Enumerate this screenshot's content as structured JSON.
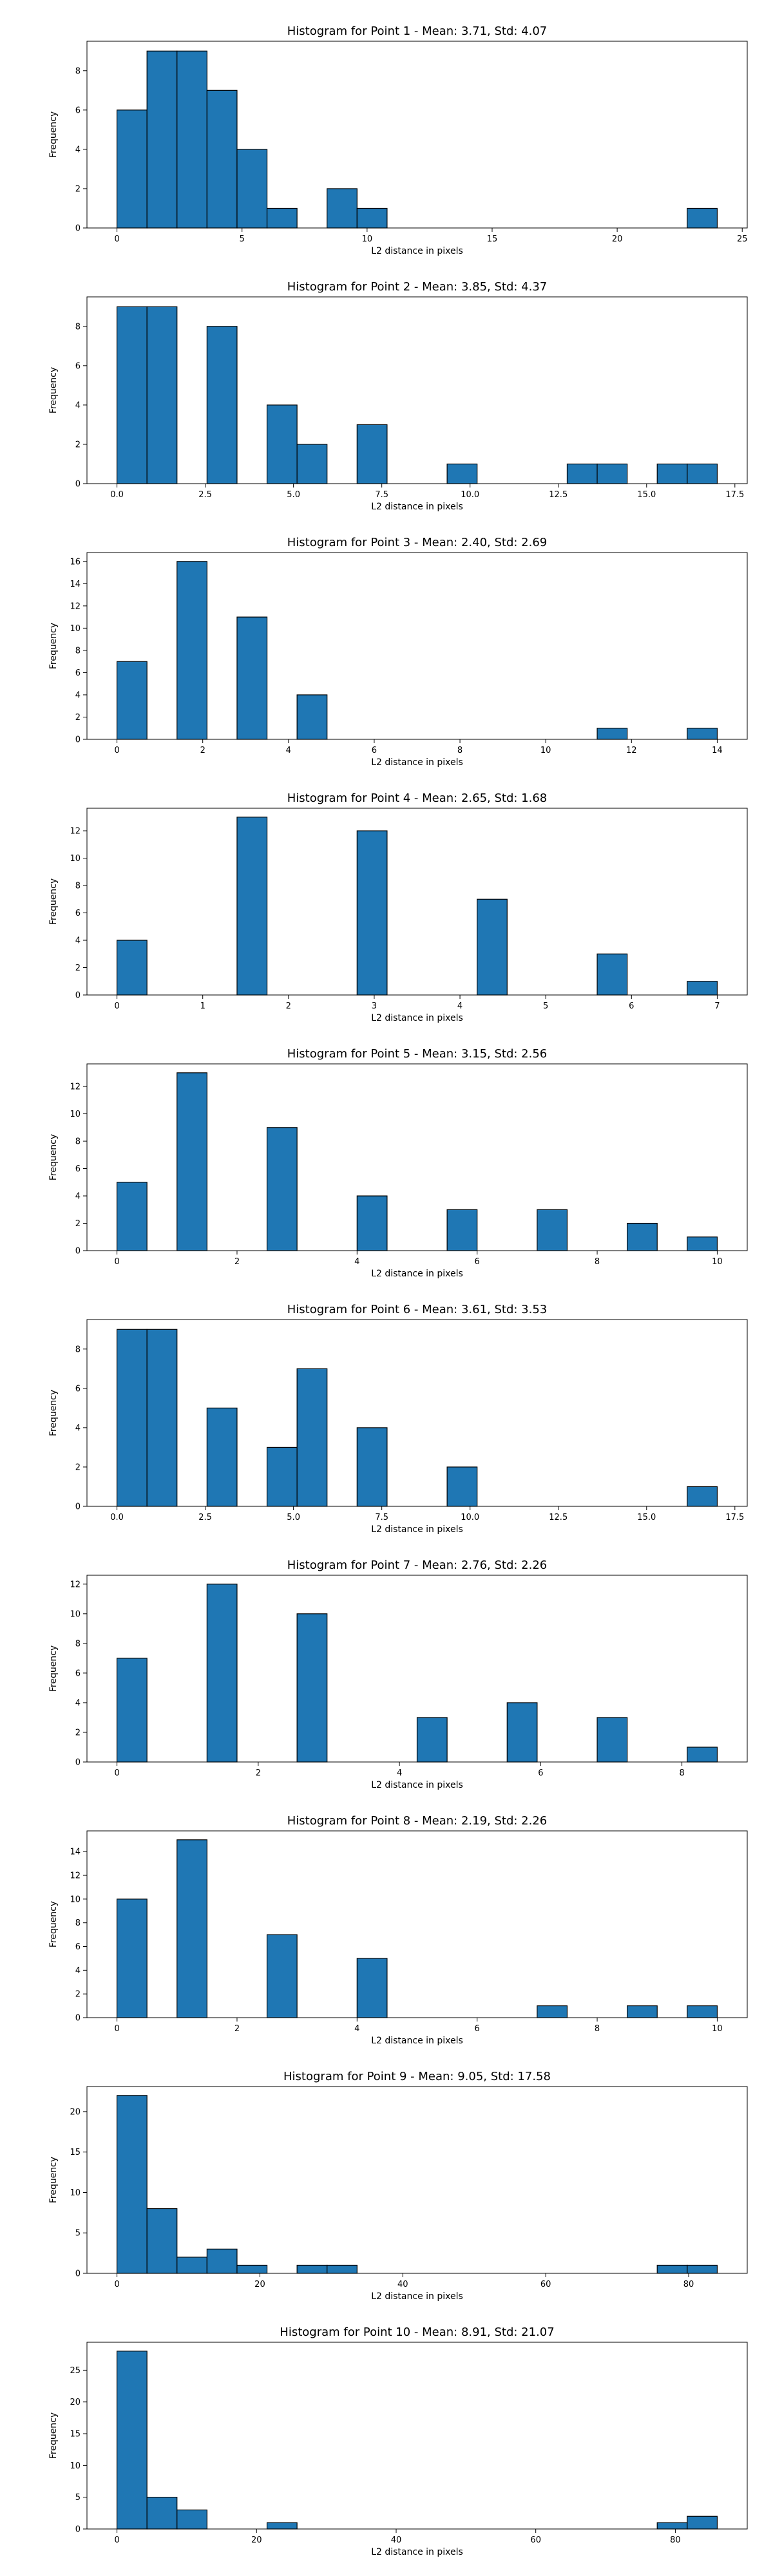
{
  "chart_data": [
    {
      "type": "bar",
      "title": "Histogram for Point 1 - Mean: 3.71, Std: 4.07",
      "xlabel": "L2 distance in pixels",
      "ylabel": "Frequency",
      "xlim": [
        -1.2,
        25.2
      ],
      "ylim": [
        0,
        9.5
      ],
      "xticks": [
        0,
        5,
        10,
        15,
        20,
        25
      ],
      "xtick_labels": [
        "0",
        "5",
        "10",
        "15",
        "20",
        "25"
      ],
      "yticks": [
        0,
        2,
        4,
        6,
        8
      ],
      "ytick_labels": [
        "0",
        "2",
        "4",
        "6",
        "8"
      ],
      "bins": [
        {
          "x0": 0.0,
          "x1": 1.2,
          "count": 6
        },
        {
          "x0": 1.2,
          "x1": 2.4,
          "count": 9
        },
        {
          "x0": 2.4,
          "x1": 3.6,
          "count": 9
        },
        {
          "x0": 3.6,
          "x1": 4.8,
          "count": 7
        },
        {
          "x0": 4.8,
          "x1": 6.0,
          "count": 4
        },
        {
          "x0": 6.0,
          "x1": 7.2,
          "count": 1
        },
        {
          "x0": 8.4,
          "x1": 9.6,
          "count": 2
        },
        {
          "x0": 9.6,
          "x1": 10.8,
          "count": 1
        },
        {
          "x0": 22.8,
          "x1": 24.0,
          "count": 1
        }
      ]
    },
    {
      "type": "bar",
      "title": "Histogram for Point 2 - Mean: 3.85, Std: 4.37",
      "xlabel": "L2 distance in pixels",
      "ylabel": "Frequency",
      "xlim": [
        -0.85,
        17.85
      ],
      "ylim": [
        0,
        9.5
      ],
      "xticks": [
        0,
        2.5,
        5,
        7.5,
        10,
        12.5,
        15,
        17.5
      ],
      "xtick_labels": [
        "0.0",
        "2.5",
        "5.0",
        "7.5",
        "10.0",
        "12.5",
        "15.0",
        "17.5"
      ],
      "yticks": [
        0,
        2,
        4,
        6,
        8
      ],
      "ytick_labels": [
        "0",
        "2",
        "4",
        "6",
        "8"
      ],
      "bins": [
        {
          "x0": 0.0,
          "x1": 0.85,
          "count": 9
        },
        {
          "x0": 0.85,
          "x1": 1.7,
          "count": 9
        },
        {
          "x0": 2.55,
          "x1": 3.4,
          "count": 8
        },
        {
          "x0": 4.25,
          "x1": 5.1,
          "count": 4
        },
        {
          "x0": 5.1,
          "x1": 5.95,
          "count": 2
        },
        {
          "x0": 6.8,
          "x1": 7.65,
          "count": 3
        },
        {
          "x0": 9.35,
          "x1": 10.2,
          "count": 1
        },
        {
          "x0": 12.75,
          "x1": 13.6,
          "count": 1
        },
        {
          "x0": 13.6,
          "x1": 14.45,
          "count": 1
        },
        {
          "x0": 15.3,
          "x1": 16.15,
          "count": 1
        },
        {
          "x0": 16.15,
          "x1": 17.0,
          "count": 1
        }
      ]
    },
    {
      "type": "bar",
      "title": "Histogram for Point 3 - Mean: 2.40, Std: 2.69",
      "xlabel": "L2 distance in pixels",
      "ylabel": "Frequency",
      "xlim": [
        -0.7,
        14.7
      ],
      "ylim": [
        0,
        16.8
      ],
      "xticks": [
        0,
        2,
        4,
        6,
        8,
        10,
        12,
        14
      ],
      "xtick_labels": [
        "0",
        "2",
        "4",
        "6",
        "8",
        "10",
        "12",
        "14"
      ],
      "yticks": [
        0,
        2,
        4,
        6,
        8,
        10,
        12,
        14,
        16
      ],
      "ytick_labels": [
        "0",
        "2",
        "4",
        "6",
        "8",
        "10",
        "12",
        "14",
        "16"
      ],
      "bins": [
        {
          "x0": 0.0,
          "x1": 0.7,
          "count": 7
        },
        {
          "x0": 1.4,
          "x1": 2.1,
          "count": 16
        },
        {
          "x0": 2.8,
          "x1": 3.5,
          "count": 11
        },
        {
          "x0": 4.2,
          "x1": 4.9,
          "count": 4
        },
        {
          "x0": 11.2,
          "x1": 11.9,
          "count": 1
        },
        {
          "x0": 13.3,
          "x1": 14.0,
          "count": 1
        }
      ]
    },
    {
      "type": "bar",
      "title": "Histogram for Point 4 - Mean: 2.65, Std: 1.68",
      "xlabel": "L2 distance in pixels",
      "ylabel": "Frequency",
      "xlim": [
        -0.35,
        7.35
      ],
      "ylim": [
        0,
        13.65
      ],
      "xticks": [
        0,
        1,
        2,
        3,
        4,
        5,
        6,
        7
      ],
      "xtick_labels": [
        "0",
        "1",
        "2",
        "3",
        "4",
        "5",
        "6",
        "7"
      ],
      "yticks": [
        0,
        2,
        4,
        6,
        8,
        10,
        12
      ],
      "ytick_labels": [
        "0",
        "2",
        "4",
        "6",
        "8",
        "10",
        "12"
      ],
      "bins": [
        {
          "x0": 0.0,
          "x1": 0.35,
          "count": 4
        },
        {
          "x0": 1.4,
          "x1": 1.75,
          "count": 13
        },
        {
          "x0": 2.8,
          "x1": 3.15,
          "count": 12
        },
        {
          "x0": 4.2,
          "x1": 4.55,
          "count": 7
        },
        {
          "x0": 5.6,
          "x1": 5.95,
          "count": 3
        },
        {
          "x0": 6.65,
          "x1": 7.0,
          "count": 1
        }
      ]
    },
    {
      "type": "bar",
      "title": "Histogram for Point 5 - Mean: 3.15, Std: 2.56",
      "xlabel": "L2 distance in pixels",
      "ylabel": "Frequency",
      "xlim": [
        -0.5,
        10.5
      ],
      "ylim": [
        0,
        13.65
      ],
      "xticks": [
        0,
        2,
        4,
        6,
        8,
        10
      ],
      "xtick_labels": [
        "0",
        "2",
        "4",
        "6",
        "8",
        "10"
      ],
      "yticks": [
        0,
        2,
        4,
        6,
        8,
        10,
        12
      ],
      "ytick_labels": [
        "0",
        "2",
        "4",
        "6",
        "8",
        "10",
        "12"
      ],
      "bins": [
        {
          "x0": 0.0,
          "x1": 0.5,
          "count": 5
        },
        {
          "x0": 1.0,
          "x1": 1.5,
          "count": 13
        },
        {
          "x0": 2.5,
          "x1": 3.0,
          "count": 9
        },
        {
          "x0": 4.0,
          "x1": 4.5,
          "count": 4
        },
        {
          "x0": 5.5,
          "x1": 6.0,
          "count": 3
        },
        {
          "x0": 7.0,
          "x1": 7.5,
          "count": 3
        },
        {
          "x0": 8.5,
          "x1": 9.0,
          "count": 2
        },
        {
          "x0": 9.5,
          "x1": 10.0,
          "count": 1
        }
      ]
    },
    {
      "type": "bar",
      "title": "Histogram for Point 6 - Mean: 3.61, Std: 3.53",
      "xlabel": "L2 distance in pixels",
      "ylabel": "Frequency",
      "xlim": [
        -0.85,
        17.85
      ],
      "ylim": [
        0,
        9.5
      ],
      "xticks": [
        0,
        2.5,
        5,
        7.5,
        10,
        12.5,
        15,
        17.5
      ],
      "xtick_labels": [
        "0.0",
        "2.5",
        "5.0",
        "7.5",
        "10.0",
        "12.5",
        "15.0",
        "17.5"
      ],
      "yticks": [
        0,
        2,
        4,
        6,
        8
      ],
      "ytick_labels": [
        "0",
        "2",
        "4",
        "6",
        "8"
      ],
      "bins": [
        {
          "x0": 0.0,
          "x1": 0.85,
          "count": 9
        },
        {
          "x0": 0.85,
          "x1": 1.7,
          "count": 9
        },
        {
          "x0": 2.55,
          "x1": 3.4,
          "count": 5
        },
        {
          "x0": 4.25,
          "x1": 5.1,
          "count": 3
        },
        {
          "x0": 5.1,
          "x1": 5.95,
          "count": 7
        },
        {
          "x0": 6.8,
          "x1": 7.65,
          "count": 4
        },
        {
          "x0": 9.35,
          "x1": 10.2,
          "count": 2
        },
        {
          "x0": 16.15,
          "x1": 17.0,
          "count": 1
        }
      ]
    },
    {
      "type": "bar",
      "title": "Histogram for Point 7 - Mean: 2.76, Std: 2.26",
      "xlabel": "L2 distance in pixels",
      "ylabel": "Frequency",
      "xlim": [
        -0.425,
        8.925
      ],
      "ylim": [
        0,
        12.6
      ],
      "xticks": [
        0,
        2,
        4,
        6,
        8
      ],
      "xtick_labels": [
        "0",
        "2",
        "4",
        "6",
        "8"
      ],
      "yticks": [
        0,
        2,
        4,
        6,
        8,
        10,
        12
      ],
      "ytick_labels": [
        "0",
        "2",
        "4",
        "6",
        "8",
        "10",
        "12"
      ],
      "bins": [
        {
          "x0": 0.0,
          "x1": 0.425,
          "count": 7
        },
        {
          "x0": 1.275,
          "x1": 1.7,
          "count": 12
        },
        {
          "x0": 2.55,
          "x1": 2.975,
          "count": 10
        },
        {
          "x0": 4.25,
          "x1": 4.675,
          "count": 3
        },
        {
          "x0": 5.525,
          "x1": 5.95,
          "count": 4
        },
        {
          "x0": 6.8,
          "x1": 7.225,
          "count": 3
        },
        {
          "x0": 8.075,
          "x1": 8.5,
          "count": 1
        }
      ]
    },
    {
      "type": "bar",
      "title": "Histogram for Point 8 - Mean: 2.19, Std: 2.26",
      "xlabel": "L2 distance in pixels",
      "ylabel": "Frequency",
      "xlim": [
        -0.5,
        10.5
      ],
      "ylim": [
        0,
        15.75
      ],
      "xticks": [
        0,
        2,
        4,
        6,
        8,
        10
      ],
      "xtick_labels": [
        "0",
        "2",
        "4",
        "6",
        "8",
        "10"
      ],
      "yticks": [
        0,
        2,
        4,
        6,
        8,
        10,
        12,
        14
      ],
      "ytick_labels": [
        "0",
        "2",
        "4",
        "6",
        "8",
        "10",
        "12",
        "14"
      ],
      "bins": [
        {
          "x0": 0.0,
          "x1": 0.5,
          "count": 10
        },
        {
          "x0": 1.0,
          "x1": 1.5,
          "count": 15
        },
        {
          "x0": 2.5,
          "x1": 3.0,
          "count": 7
        },
        {
          "x0": 4.0,
          "x1": 4.5,
          "count": 5
        },
        {
          "x0": 7.0,
          "x1": 7.5,
          "count": 1
        },
        {
          "x0": 8.5,
          "x1": 9.0,
          "count": 1
        },
        {
          "x0": 9.5,
          "x1": 10.0,
          "count": 1
        }
      ]
    },
    {
      "type": "bar",
      "title": "Histogram for Point 9 - Mean: 9.05, Std: 17.58",
      "xlabel": "L2 distance in pixels",
      "ylabel": "Frequency",
      "xlim": [
        -4.2,
        88.2
      ],
      "ylim": [
        0,
        23.1
      ],
      "xticks": [
        0,
        20,
        40,
        60,
        80
      ],
      "xtick_labels": [
        "0",
        "20",
        "40",
        "60",
        "80"
      ],
      "yticks": [
        0,
        5,
        10,
        15,
        20
      ],
      "ytick_labels": [
        "0",
        "5",
        "10",
        "15",
        "20"
      ],
      "bins": [
        {
          "x0": 0.0,
          "x1": 4.2,
          "count": 22
        },
        {
          "x0": 4.2,
          "x1": 8.4,
          "count": 8
        },
        {
          "x0": 8.4,
          "x1": 12.6,
          "count": 2
        },
        {
          "x0": 12.6,
          "x1": 16.8,
          "count": 3
        },
        {
          "x0": 16.8,
          "x1": 21.0,
          "count": 1
        },
        {
          "x0": 25.2,
          "x1": 29.4,
          "count": 1
        },
        {
          "x0": 29.4,
          "x1": 33.6,
          "count": 1
        },
        {
          "x0": 75.6,
          "x1": 79.8,
          "count": 1
        },
        {
          "x0": 79.8,
          "x1": 84.0,
          "count": 1
        }
      ]
    },
    {
      "type": "bar",
      "title": "Histogram for Point 10 - Mean: 8.91, Std: 21.07",
      "xlabel": "L2 distance in pixels",
      "ylabel": "Frequency",
      "xlim": [
        -4.3,
        90.3
      ],
      "ylim": [
        0,
        29.4
      ],
      "xticks": [
        0,
        20,
        40,
        60,
        80
      ],
      "xtick_labels": [
        "0",
        "20",
        "40",
        "60",
        "80"
      ],
      "yticks": [
        0,
        5,
        10,
        15,
        20,
        25
      ],
      "ytick_labels": [
        "0",
        "5",
        "10",
        "15",
        "20",
        "25"
      ],
      "bins": [
        {
          "x0": 0.0,
          "x1": 4.3,
          "count": 28
        },
        {
          "x0": 4.3,
          "x1": 8.6,
          "count": 5
        },
        {
          "x0": 8.6,
          "x1": 12.9,
          "count": 3
        },
        {
          "x0": 21.5,
          "x1": 25.8,
          "count": 1
        },
        {
          "x0": 77.4,
          "x1": 81.7,
          "count": 1
        },
        {
          "x0": 81.7,
          "x1": 86.0,
          "count": 2
        }
      ]
    }
  ]
}
